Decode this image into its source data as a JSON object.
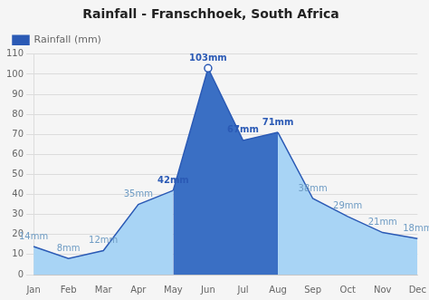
{
  "chart_data": {
    "type": "area",
    "title": "Rainfall - Franschhoek, South Africa",
    "categories": [
      "Jan",
      "Feb",
      "Mar",
      "Apr",
      "May",
      "Jun",
      "Jul",
      "Aug",
      "Sep",
      "Oct",
      "Nov",
      "Dec"
    ],
    "series": [
      {
        "name": "Rainfall (mm)",
        "color": "#2b5ab5",
        "values": [
          14,
          8,
          12,
          35,
          42,
          103,
          67,
          71,
          38,
          29,
          21,
          18
        ],
        "value_labels": [
          "14mm",
          "8mm",
          "12mm",
          "35mm",
          "42mm",
          "103mm",
          "67mm",
          "71mm",
          "38mm",
          "29mm",
          "21mm",
          "18mm"
        ],
        "colors": [
          "#a8d4f5",
          "#a8d4f5",
          "#a8d4f5",
          "#a8d4f5",
          "#3a6fc4",
          "#3a6fc4",
          "#3a6fc4",
          "#3a6fc4",
          "#a8d4f5",
          "#a8d4f5",
          "#a8d4f5",
          "#a8d4f5"
        ]
      }
    ],
    "ylim": [
      0,
      110
    ],
    "yticks": [
      0,
      10,
      20,
      30,
      40,
      50,
      60,
      70,
      80,
      90,
      100,
      110
    ],
    "grid": true,
    "legend": "upper left",
    "data_labels": true
  }
}
